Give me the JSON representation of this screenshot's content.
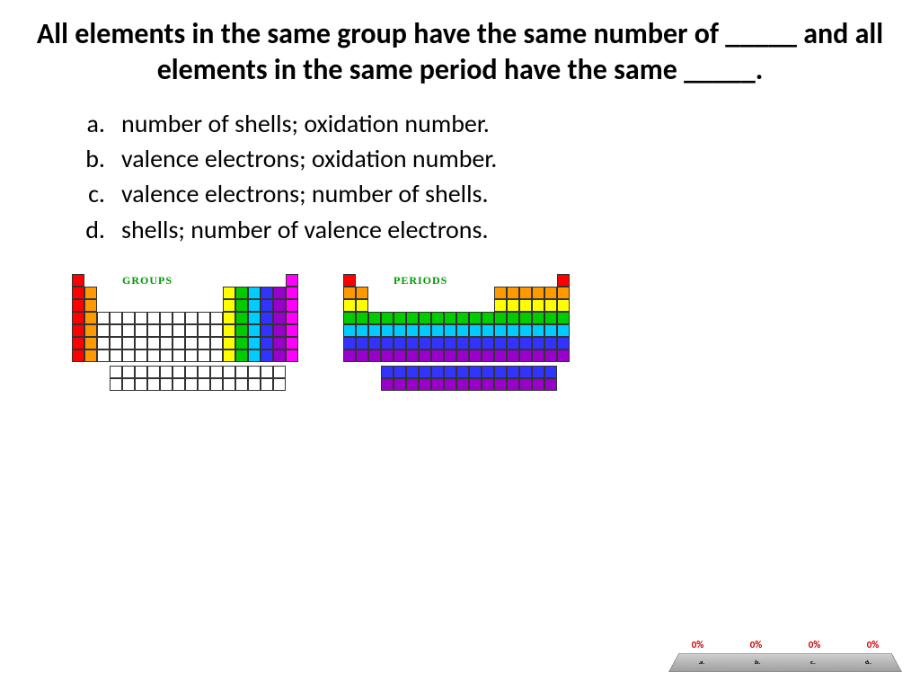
{
  "title": "All elements in the same group have the same number of _____ and all elements in the same period have the same _____.",
  "options": [
    {
      "letter": "a.",
      "text": "number of shells; oxidation number."
    },
    {
      "letter": "b.",
      "text": "valence electrons; oxidation number."
    },
    {
      "letter": "c.",
      "text": "valence electrons; number of shells."
    },
    {
      "letter": "d.",
      "text": "shells; number of valence electrons."
    }
  ],
  "diagrams": {
    "groups": {
      "label": "GROUPS",
      "column_colors": [
        "#ff0000",
        "#ff9900",
        "#ffffff",
        "#ffffff",
        "#ffffff",
        "#ffffff",
        "#ffffff",
        "#ffffff",
        "#ffffff",
        "#ffffff",
        "#ffffff",
        "#ffffff",
        "#ffff00",
        "#00cc00",
        "#00ccff",
        "#3333ff",
        "#9900cc",
        "#ff00ff"
      ]
    },
    "periods": {
      "label": "PERIODS",
      "row_colors": [
        "#ff0000",
        "#ff9900",
        "#ffff00",
        "#00cc00",
        "#00ccff",
        "#3333ff",
        "#9900cc"
      ],
      "lanth_colors": [
        "#3333ff",
        "#9900cc"
      ]
    },
    "periodic_structure": [
      [
        1,
        0,
        0,
        0,
        0,
        0,
        0,
        0,
        0,
        0,
        0,
        0,
        0,
        0,
        0,
        0,
        0,
        1
      ],
      [
        1,
        1,
        0,
        0,
        0,
        0,
        0,
        0,
        0,
        0,
        0,
        0,
        1,
        1,
        1,
        1,
        1,
        1
      ],
      [
        1,
        1,
        0,
        0,
        0,
        0,
        0,
        0,
        0,
        0,
        0,
        0,
        1,
        1,
        1,
        1,
        1,
        1
      ],
      [
        1,
        1,
        1,
        1,
        1,
        1,
        1,
        1,
        1,
        1,
        1,
        1,
        1,
        1,
        1,
        1,
        1,
        1
      ],
      [
        1,
        1,
        1,
        1,
        1,
        1,
        1,
        1,
        1,
        1,
        1,
        1,
        1,
        1,
        1,
        1,
        1,
        1
      ],
      [
        1,
        1,
        1,
        1,
        1,
        1,
        1,
        1,
        1,
        1,
        1,
        1,
        1,
        1,
        1,
        1,
        1,
        1
      ],
      [
        1,
        1,
        1,
        1,
        1,
        1,
        1,
        1,
        1,
        1,
        1,
        1,
        1,
        1,
        1,
        1,
        1,
        1
      ]
    ],
    "lanthanide_rows": 2,
    "lanthanide_cols": 14
  },
  "results": {
    "labels": [
      "a.",
      "b.",
      "c.",
      "d."
    ],
    "percents": [
      "0%",
      "0%",
      "0%",
      "0%"
    ]
  },
  "colors": {
    "title_text": "#000000",
    "option_text": "#000000",
    "diagram_label": "#009900",
    "percent_text": "#cc0000",
    "cell_border": "#333333"
  },
  "typography": {
    "title_fontsize": 32,
    "option_fontsize": 28,
    "diagram_label_fontsize": 13
  }
}
